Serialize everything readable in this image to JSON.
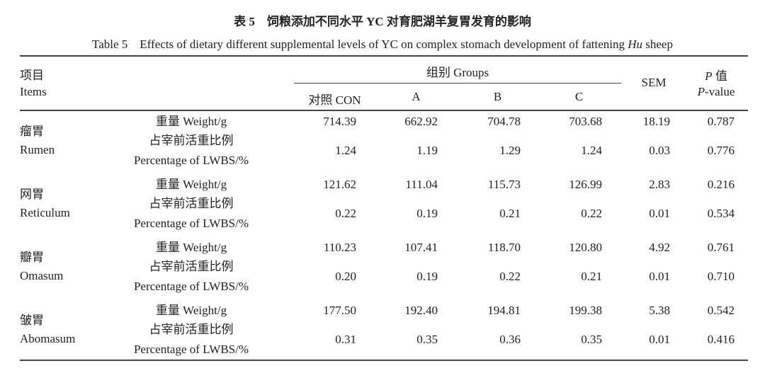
{
  "title_cn": "表 5　饲粮添加不同水平 YC 对育肥湖羊复胃发育的影响",
  "title_en_prefix": "Table 5　Effects of dietary different supplemental levels of YC on complex stomach development of fattening ",
  "title_en_italic": "Hu",
  "title_en_suffix": " sheep",
  "header": {
    "items_cn": "项目",
    "items_en": "Items",
    "groups": "组别 Groups",
    "group_cols": [
      "对照 CON",
      "A",
      "B",
      "C"
    ],
    "sem": "SEM",
    "p_cn_italic": "P",
    "p_cn": " 值",
    "p_en_italic": "P",
    "p_en": "-value"
  },
  "measures": {
    "weight": "重量 Weight/g",
    "pct_cn": "占宰前活重比例",
    "pct_en": "Percentage of LWBS/%"
  },
  "rows": [
    {
      "cn": "瘤胃",
      "en": "Rumen",
      "weight": [
        "714.39",
        "662.92",
        "704.78",
        "703.68",
        "18.19",
        "0.787"
      ],
      "pct": [
        "1.24",
        "1.19",
        "1.29",
        "1.24",
        "0.03",
        "0.776"
      ]
    },
    {
      "cn": "网胃",
      "en": "Reticulum",
      "weight": [
        "121.62",
        "111.04",
        "115.73",
        "126.99",
        "2.83",
        "0.216"
      ],
      "pct": [
        "0.22",
        "0.19",
        "0.21",
        "0.22",
        "0.01",
        "0.534"
      ]
    },
    {
      "cn": "瓣胃",
      "en": "Omasum",
      "weight": [
        "110.23",
        "107.41",
        "118.70",
        "120.80",
        "4.92",
        "0.761"
      ],
      "pct": [
        "0.20",
        "0.19",
        "0.22",
        "0.21",
        "0.01",
        "0.710"
      ]
    },
    {
      "cn": "皱胃",
      "en": "Abomasum",
      "weight": [
        "177.50",
        "192.40",
        "194.81",
        "199.38",
        "5.38",
        "0.542"
      ],
      "pct": [
        "0.31",
        "0.35",
        "0.36",
        "0.35",
        "0.01",
        "0.416"
      ]
    }
  ]
}
